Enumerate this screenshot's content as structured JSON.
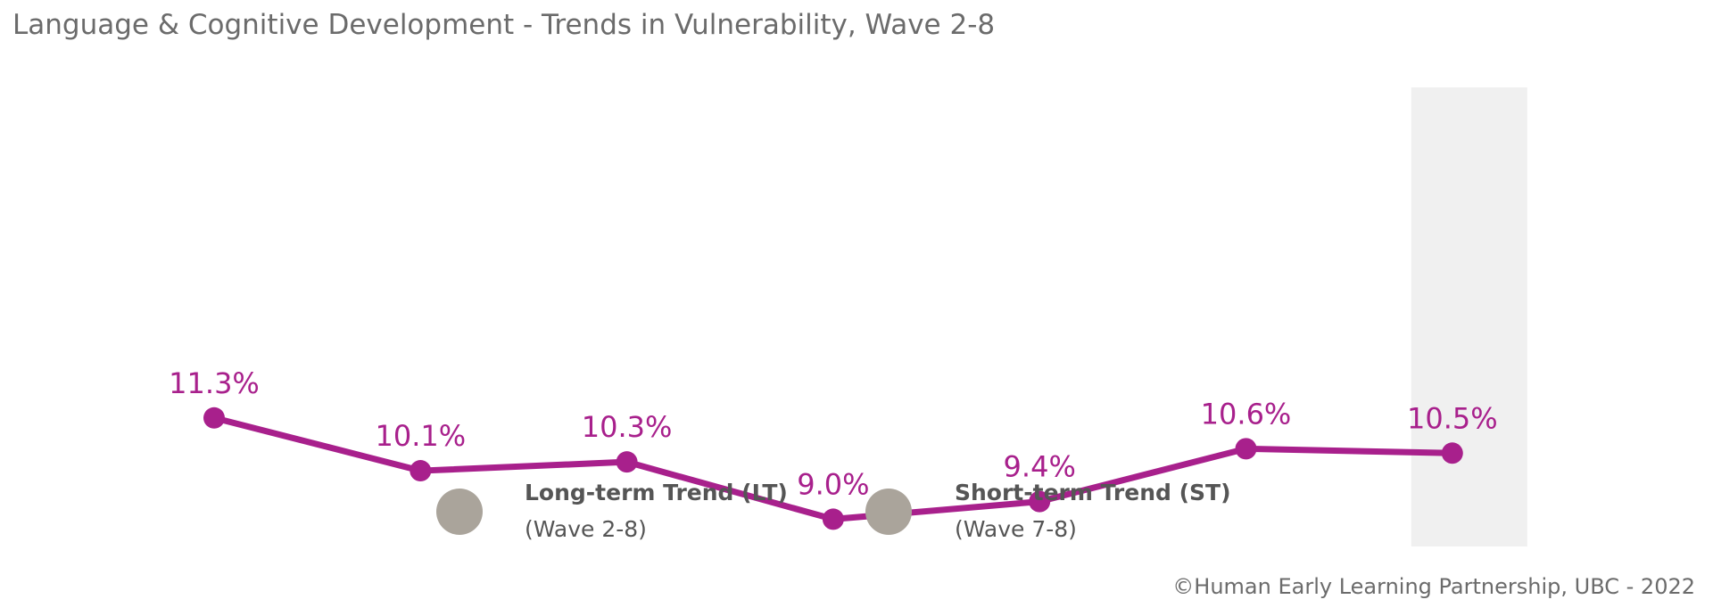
{
  "chart_data": {
    "type": "line",
    "title": "Language & Cognitive Development - Trends in Vulnerability, Wave 2-8",
    "categories": [
      "",
      "",
      "",
      "",
      "",
      "",
      ""
    ],
    "series": [
      {
        "values": [
          11.3,
          10.1,
          10.3,
          9.0,
          9.4,
          10.6,
          10.5
        ],
        "data_labels": [
          "11.3%",
          "10.1%",
          "10.3%",
          "9.0%",
          "9.4%",
          "10.6%",
          "10.5%"
        ]
      }
    ],
    "ylim": [
      0,
      20
    ],
    "grid": false,
    "highlighted_point_index": 6,
    "legend": {
      "placement": "bottom",
      "items": [
        {
          "label": "Long-term Trend (LT)",
          "sublabel": "(Wave 2-8)"
        },
        {
          "label": "Short-term Trend (ST)",
          "sublabel": "(Wave 7-8)"
        }
      ]
    }
  },
  "colors": {
    "line": "#a8208c",
    "highlight_band": "#f0f0f0",
    "legend_marker": "#aaa49b",
    "title_text": "#6b6b6b"
  },
  "footer": {
    "credit": "©Human Early Learning Partnership, UBC - 2022"
  }
}
